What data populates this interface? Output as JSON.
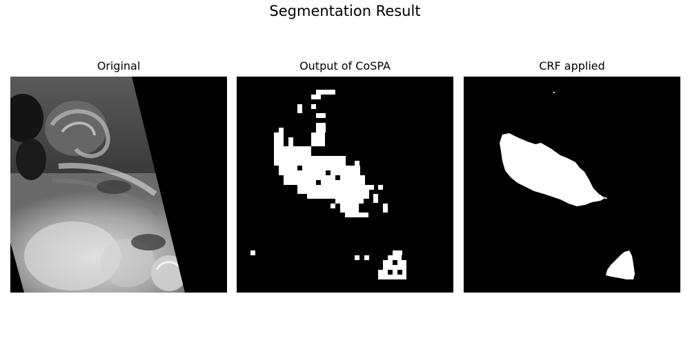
{
  "figure": {
    "title": "Segmentation Result"
  },
  "panels": [
    {
      "title": "Original",
      "kind": "satellite-image",
      "background": "#000000"
    },
    {
      "title": "Output of CoSPA",
      "kind": "coarse-segmentation-mask",
      "background": "#000000",
      "foreground": "#ffffff"
    },
    {
      "title": "CRF applied",
      "kind": "refined-segmentation-mask",
      "background": "#000000",
      "foreground": "#ffffff"
    }
  ]
}
